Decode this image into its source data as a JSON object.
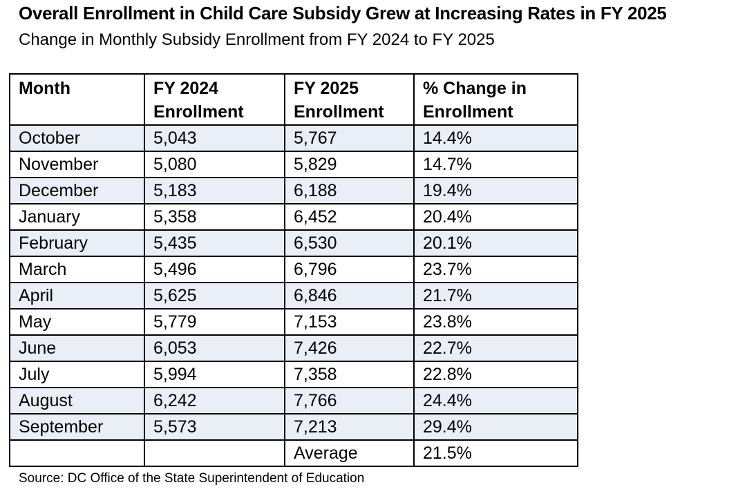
{
  "figure": {
    "title": "Overall Enrollment in Child Care Subsidy Grew at Increasing Rates in FY 2025",
    "subtitle": "Change in Monthly Subsidy Enrollment from FY 2024 to FY 2025",
    "source": "Source: DC Office of the State Superintendent of Education"
  },
  "table": {
    "headers": [
      "Month",
      "FY 2024\nEnrollment",
      "FY 2025\nEnrollment",
      "% Change in\nEnrollment"
    ],
    "rows": [
      {
        "month": "October",
        "fy2024": "5,043",
        "fy2025": "5,767",
        "pct": "14.4%",
        "shaded": true
      },
      {
        "month": "November",
        "fy2024": "5,080",
        "fy2025": "5,829",
        "pct": "14.7%",
        "shaded": false
      },
      {
        "month": "December",
        "fy2024": "5,183",
        "fy2025": "6,188",
        "pct": "19.4%",
        "shaded": true
      },
      {
        "month": "January",
        "fy2024": "5,358",
        "fy2025": "6,452",
        "pct": "20.4%",
        "shaded": false
      },
      {
        "month": "February",
        "fy2024": "5,435",
        "fy2025": "6,530",
        "pct": "20.1%",
        "shaded": true
      },
      {
        "month": "March",
        "fy2024": "5,496",
        "fy2025": "6,796",
        "pct": "23.7%",
        "shaded": false
      },
      {
        "month": "April",
        "fy2024": "5,625",
        "fy2025": "6,846",
        "pct": "21.7%",
        "shaded": true
      },
      {
        "month": "May",
        "fy2024": "5,779",
        "fy2025": "7,153",
        "pct": "23.8%",
        "shaded": false
      },
      {
        "month": "June",
        "fy2024": "6,053",
        "fy2025": "7,426",
        "pct": "22.7%",
        "shaded": true
      },
      {
        "month": "July",
        "fy2024": "5,994",
        "fy2025": "7,358",
        "pct": "22.8%",
        "shaded": false
      },
      {
        "month": "August",
        "fy2024": "6,242",
        "fy2025": "7,766",
        "pct": "24.4%",
        "shaded": true
      },
      {
        "month": "September",
        "fy2024": "5,573",
        "fy2025": "7,213",
        "pct": "29.4%",
        "shaded": true
      },
      {
        "month": "",
        "fy2024": "",
        "fy2025": "Average",
        "pct": "21.5%",
        "shaded": false
      }
    ]
  },
  "chart_data": {
    "type": "table",
    "title": "Overall Enrollment in Child Care Subsidy Grew at Increasing Rates in FY 2025",
    "subtitle": "Change in Monthly Subsidy Enrollment from FY 2024 to FY 2025",
    "columns": [
      "Month",
      "FY 2024 Enrollment",
      "FY 2025 Enrollment",
      "% Change in Enrollment"
    ],
    "categories": [
      "October",
      "November",
      "December",
      "January",
      "February",
      "March",
      "April",
      "May",
      "June",
      "July",
      "August",
      "September"
    ],
    "series": [
      {
        "name": "FY 2024 Enrollment",
        "values": [
          5043,
          5080,
          5183,
          5358,
          5435,
          5496,
          5625,
          5779,
          6053,
          5994,
          6242,
          5573
        ]
      },
      {
        "name": "FY 2025 Enrollment",
        "values": [
          5767,
          5829,
          6188,
          6452,
          6530,
          6796,
          6846,
          7153,
          7426,
          7358,
          7766,
          7213
        ]
      },
      {
        "name": "% Change in Enrollment",
        "values": [
          14.4,
          14.7,
          19.4,
          20.4,
          20.1,
          23.7,
          21.7,
          23.8,
          22.7,
          22.8,
          24.4,
          29.4
        ]
      }
    ],
    "average_pct_change": 21.5,
    "source": "Source: DC Office of the State Superintendent of Education"
  },
  "colors": {
    "row_shade": "#e9eef7",
    "border": "#000000",
    "text": "#000000",
    "background": "#ffffff"
  }
}
